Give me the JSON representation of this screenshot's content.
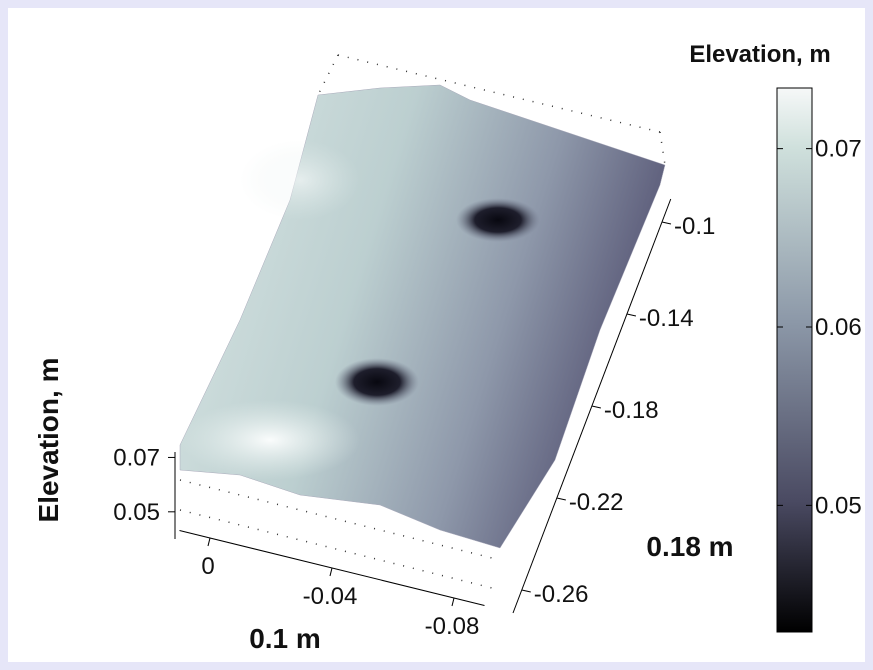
{
  "chart_data": {
    "type": "surface",
    "colorbar": {
      "title": "Elevation, m",
      "clim": [
        0.0429,
        0.0734
      ],
      "ticks": [
        0.07,
        0.06,
        0.05
      ]
    },
    "zaxis": {
      "label": "Elevation, m",
      "zlim": [
        0.04,
        0.072
      ],
      "ticks": [
        0.07,
        0.05
      ]
    },
    "xaxis": {
      "label": "0.1 m",
      "xlim": [
        0.01,
        -0.09
      ],
      "ticks": [
        0,
        -0.04,
        -0.08
      ]
    },
    "yaxis": {
      "label": "0.18 m",
      "ylim": [
        -0.27,
        -0.09
      ],
      "ticks": [
        -0.1,
        -0.14,
        -0.18,
        -0.22,
        -0.26
      ]
    }
  }
}
